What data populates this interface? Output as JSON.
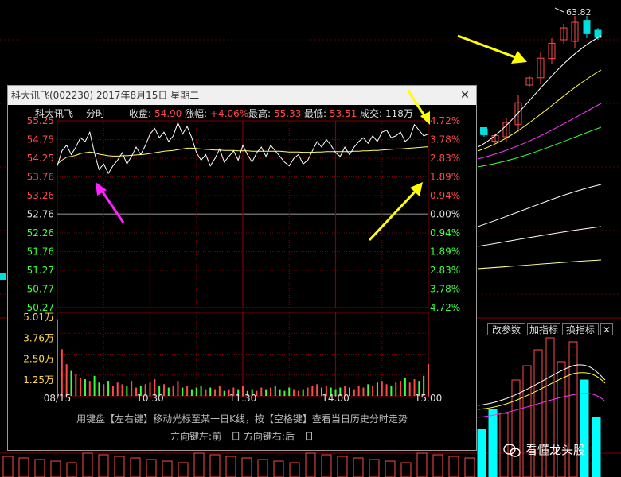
{
  "popup": {
    "title": "科大讯飞(002230) 2017年8月15日 星期二",
    "info": {
      "name": "科大讯飞",
      "mode": "分时",
      "close_label": "收盘:",
      "close_value": "54.90",
      "change_label": "涨幅:",
      "change_value": "+4.06%",
      "high_label": "最高:",
      "high_value": "55.33",
      "low_label": "最低:",
      "low_value": "53.51",
      "volume_label": "成交:",
      "volume_value": "118万"
    },
    "footer_line1": "用键盘【左右键】移动光标至某一日K线，按【空格键】查看当日历史分时走势",
    "footer_line2": "方向键左:前一日    方向键右:后一日"
  },
  "chart_data": {
    "type": "line",
    "x_ticks": [
      "08/15",
      "10:30",
      "11:30",
      "14:00",
      "15:00"
    ],
    "y_ticks_price": [
      "55.25",
      "54.75",
      "54.25",
      "53.76",
      "53.26",
      "52.76",
      "52.26",
      "51.76",
      "51.27",
      "50.77",
      "50.27"
    ],
    "y_ticks_pct": [
      "4.72%",
      "3.78%",
      "2.83%",
      "1.89%",
      "0.94%",
      "0.00%",
      "0.94%",
      "1.89%",
      "2.83%",
      "3.78%",
      "4.72%"
    ],
    "y_ticks_volume": [
      "5.01万",
      "3.76万",
      "2.50万",
      "1.25万"
    ],
    "prev_close": 52.76,
    "ylim": [
      50.27,
      55.25
    ],
    "volume_max": 5.01,
    "price": [
      54.05,
      54.45,
      54.6,
      54.35,
      54.55,
      54.8,
      54.7,
      54.95,
      54.4,
      53.95,
      54.1,
      53.85,
      54.05,
      54.2,
      54.4,
      54.1,
      54.3,
      54.55,
      54.35,
      54.6,
      54.9,
      55.05,
      54.8,
      54.95,
      54.7,
      54.85,
      55.2,
      54.9,
      55.1,
      54.8,
      54.4,
      54.2,
      54.35,
      54.05,
      54.25,
      54.5,
      54.15,
      54.3,
      54.45,
      54.2,
      54.6,
      54.35,
      54.15,
      54.4,
      54.55,
      54.3,
      54.6,
      54.45,
      54.3,
      54.15,
      54.05,
      54.25,
      54.35,
      54.1,
      54.2,
      54.45,
      54.7,
      54.55,
      54.75,
      54.6,
      54.4,
      54.3,
      54.55,
      54.35,
      54.55,
      54.7,
      54.8,
      54.65,
      54.85,
      54.7,
      54.95,
      55.0,
      54.8,
      54.85,
      54.95,
      54.7,
      54.8,
      55.15,
      55.0,
      54.85,
      54.9
    ],
    "avg_price": [
      54.1,
      54.2,
      54.28,
      54.3,
      54.33,
      54.38,
      54.4,
      54.42,
      54.4,
      54.36,
      54.34,
      54.32,
      54.31,
      54.31,
      54.32,
      54.32,
      54.33,
      54.34,
      54.35,
      54.36,
      54.38,
      54.4,
      54.42,
      54.44,
      54.45,
      54.46,
      54.48,
      54.5,
      54.52,
      54.52,
      54.51,
      54.5,
      54.49,
      54.48,
      54.47,
      54.47,
      54.46,
      54.46,
      54.46,
      54.45,
      54.45,
      54.45,
      54.44,
      54.44,
      54.44,
      54.44,
      54.44,
      54.44,
      54.44,
      54.43,
      54.42,
      54.42,
      54.42,
      54.41,
      54.41,
      54.41,
      54.42,
      54.42,
      54.43,
      54.43,
      54.43,
      54.43,
      54.43,
      54.43,
      54.44,
      54.44,
      54.45,
      54.45,
      54.46,
      54.46,
      54.47,
      54.48,
      54.49,
      54.5,
      54.5,
      54.51,
      54.52,
      54.53,
      54.54,
      54.55,
      54.56
    ],
    "volume": [
      4.6,
      2.8,
      1.9,
      1.5,
      1.3,
      1.1,
      1.0,
      0.9,
      1.2,
      0.8,
      0.7,
      0.9,
      0.6,
      0.8,
      0.7,
      0.6,
      0.9,
      0.5,
      0.6,
      0.7,
      0.8,
      1.0,
      0.6,
      0.7,
      0.5,
      0.6,
      0.9,
      0.5,
      0.6,
      0.4,
      0.5,
      0.6,
      0.4,
      0.5,
      0.4,
      0.6,
      0.3,
      0.4,
      0.5,
      0.4,
      0.6,
      0.3,
      0.4,
      0.3,
      0.5,
      0.4,
      0.5,
      0.6,
      0.4,
      0.3,
      0.5,
      0.4,
      0.3,
      0.4,
      0.5,
      0.6,
      0.7,
      0.5,
      0.6,
      0.5,
      0.4,
      0.5,
      0.6,
      0.5,
      0.4,
      0.6,
      0.5,
      0.7,
      0.6,
      0.8,
      0.9,
      0.7,
      0.6,
      0.8,
      0.9,
      1.1,
      0.8,
      1.0,
      0.9,
      1.2,
      1.9
    ]
  },
  "kline_panel": {
    "price_label": "63.82",
    "buttons": {
      "modify_params": "改参数",
      "add_indicator": "加指标",
      "switch_indicator": "换指标",
      "close": "✕"
    }
  },
  "watermark": {
    "text": "看懂龙头股"
  },
  "colors": {
    "up": "#ff4a4a",
    "down": "#3cff3c",
    "price_line": "#ffffff",
    "avg_line": "#ffff66",
    "grid": "#800000",
    "annotation_yellow": "#ffff00",
    "annotation_magenta": "#ff22ff",
    "volume_bar_cyan": "#00ffff"
  }
}
